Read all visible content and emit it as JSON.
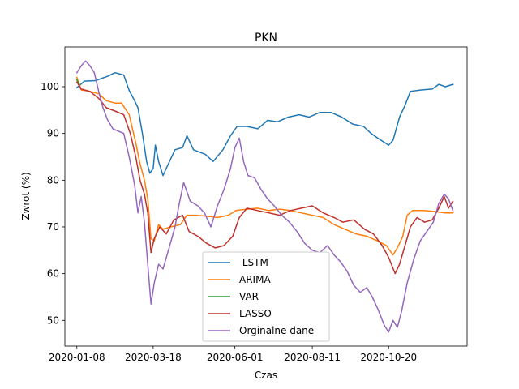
{
  "chart_data": {
    "type": "line",
    "title": "PKN",
    "xlabel": "Czas",
    "ylabel": "Zwrot (%)",
    "x_tick_labels": [
      "2020-01-08",
      "2020-03-18",
      "2020-06-01",
      "2020-08-11",
      "2020-10-20"
    ],
    "x_tick_dates": [
      "2020-01-08",
      "2020-03-18",
      "2020-06-01",
      "2020-08-11",
      "2020-10-20"
    ],
    "y_ticks": [
      50,
      60,
      70,
      80,
      90,
      100
    ],
    "xlim": [
      "2019-12-28",
      "2020-12-31"
    ],
    "ylim": [
      44.5,
      108.5
    ],
    "legend_position": "lower center",
    "series": [
      {
        "name": " LSTM",
        "color": "#1f77b4",
        "points": [
          [
            "2020-01-08",
            99.8
          ],
          [
            "2020-01-15",
            101.2
          ],
          [
            "2020-01-25",
            101.3
          ],
          [
            "2020-02-05",
            102.2
          ],
          [
            "2020-02-12",
            103.0
          ],
          [
            "2020-02-20",
            102.5
          ],
          [
            "2020-02-25",
            99.2
          ],
          [
            "2020-03-01",
            97.0
          ],
          [
            "2020-03-04",
            95.5
          ],
          [
            "2020-03-08",
            90.2
          ],
          [
            "2020-03-12",
            84.0
          ],
          [
            "2020-03-15",
            81.5
          ],
          [
            "2020-03-18",
            82.5
          ],
          [
            "2020-03-20",
            87.5
          ],
          [
            "2020-03-23",
            84.0
          ],
          [
            "2020-03-27",
            81.0
          ],
          [
            "2020-04-01",
            83.5
          ],
          [
            "2020-04-07",
            86.5
          ],
          [
            "2020-04-14",
            87.0
          ],
          [
            "2020-04-18",
            89.5
          ],
          [
            "2020-04-24",
            86.5
          ],
          [
            "2020-05-05",
            85.5
          ],
          [
            "2020-05-12",
            84.0
          ],
          [
            "2020-05-21",
            86.5
          ],
          [
            "2020-05-28",
            89.5
          ],
          [
            "2020-06-03",
            91.5
          ],
          [
            "2020-06-12",
            91.5
          ],
          [
            "2020-06-22",
            91.0
          ],
          [
            "2020-07-01",
            92.8
          ],
          [
            "2020-07-10",
            92.5
          ],
          [
            "2020-07-20",
            93.5
          ],
          [
            "2020-07-30",
            94.0
          ],
          [
            "2020-08-08",
            93.5
          ],
          [
            "2020-08-18",
            94.5
          ],
          [
            "2020-08-28",
            94.5
          ],
          [
            "2020-09-07",
            93.5
          ],
          [
            "2020-09-17",
            92.0
          ],
          [
            "2020-09-27",
            91.5
          ],
          [
            "2020-10-04",
            90.0
          ],
          [
            "2020-10-10",
            89.0
          ],
          [
            "2020-10-20",
            87.5
          ],
          [
            "2020-10-24",
            88.5
          ],
          [
            "2020-10-30",
            93.5
          ],
          [
            "2020-11-04",
            96.0
          ],
          [
            "2020-11-09",
            99.0
          ],
          [
            "2020-11-19",
            99.3
          ],
          [
            "2020-11-29",
            99.5
          ],
          [
            "2020-12-05",
            100.5
          ],
          [
            "2020-12-11",
            100.0
          ],
          [
            "2020-12-18",
            100.5
          ]
        ]
      },
      {
        "name": "ARIMA",
        "color": "#ff7f0e",
        "points": [
          [
            "2020-01-08",
            102.0
          ],
          [
            "2020-01-12",
            99.3
          ],
          [
            "2020-01-20",
            99.0
          ],
          [
            "2020-01-28",
            98.5
          ],
          [
            "2020-02-04",
            97.0
          ],
          [
            "2020-02-12",
            96.5
          ],
          [
            "2020-02-18",
            96.5
          ],
          [
            "2020-02-25",
            94.0
          ],
          [
            "2020-03-02",
            88.0
          ],
          [
            "2020-03-06",
            83.5
          ],
          [
            "2020-03-10",
            80.0
          ],
          [
            "2020-03-13",
            76.0
          ],
          [
            "2020-03-16",
            67.5
          ],
          [
            "2020-03-19",
            67.0
          ],
          [
            "2020-03-23",
            70.5
          ],
          [
            "2020-03-27",
            69.5
          ],
          [
            "2020-04-03",
            70.0
          ],
          [
            "2020-04-12",
            70.5
          ],
          [
            "2020-04-18",
            72.5
          ],
          [
            "2020-04-26",
            72.5
          ],
          [
            "2020-05-06",
            72.3
          ],
          [
            "2020-05-16",
            72.0
          ],
          [
            "2020-05-26",
            72.5
          ],
          [
            "2020-06-02",
            73.5
          ],
          [
            "2020-06-12",
            73.8
          ],
          [
            "2020-06-22",
            74.0
          ],
          [
            "2020-07-02",
            73.5
          ],
          [
            "2020-07-12",
            73.8
          ],
          [
            "2020-07-22",
            73.5
          ],
          [
            "2020-08-01",
            73.0
          ],
          [
            "2020-08-11",
            72.5
          ],
          [
            "2020-08-21",
            72.0
          ],
          [
            "2020-08-31",
            70.5
          ],
          [
            "2020-09-10",
            69.5
          ],
          [
            "2020-09-20",
            68.5
          ],
          [
            "2020-09-30",
            68.0
          ],
          [
            "2020-10-10",
            67.0
          ],
          [
            "2020-10-18",
            66.0
          ],
          [
            "2020-10-24",
            64.0
          ],
          [
            "2020-10-28",
            65.5
          ],
          [
            "2020-11-02",
            68.0
          ],
          [
            "2020-11-06",
            72.5
          ],
          [
            "2020-11-11",
            73.5
          ],
          [
            "2020-11-21",
            73.5
          ],
          [
            "2020-12-01",
            73.3
          ],
          [
            "2020-12-11",
            73.0
          ],
          [
            "2020-12-18",
            73.0
          ]
        ]
      },
      {
        "name": "VAR",
        "color": "#2ca02c",
        "points": [
          [
            "2020-01-08",
            101.5
          ],
          [
            "2020-01-10",
            100.5
          ]
        ]
      },
      {
        "name": "LASSO",
        "color": "#c0302b",
        "points": [
          [
            "2020-01-08",
            101.0
          ],
          [
            "2020-01-12",
            99.5
          ],
          [
            "2020-01-20",
            99.0
          ],
          [
            "2020-01-28",
            97.5
          ],
          [
            "2020-02-04",
            95.5
          ],
          [
            "2020-02-12",
            94.8
          ],
          [
            "2020-02-20",
            94.0
          ],
          [
            "2020-02-26",
            90.0
          ],
          [
            "2020-03-02",
            85.0
          ],
          [
            "2020-03-06",
            80.0
          ],
          [
            "2020-03-10",
            77.0
          ],
          [
            "2020-03-13",
            73.0
          ],
          [
            "2020-03-16",
            64.5
          ],
          [
            "2020-03-19",
            67.5
          ],
          [
            "2020-03-24",
            70.0
          ],
          [
            "2020-03-30",
            68.5
          ],
          [
            "2020-04-06",
            71.5
          ],
          [
            "2020-04-14",
            72.5
          ],
          [
            "2020-04-20",
            69.0
          ],
          [
            "2020-04-28",
            68.0
          ],
          [
            "2020-05-06",
            66.5
          ],
          [
            "2020-05-14",
            65.5
          ],
          [
            "2020-05-22",
            66.0
          ],
          [
            "2020-05-30",
            68.0
          ],
          [
            "2020-06-05",
            72.0
          ],
          [
            "2020-06-12",
            74.0
          ],
          [
            "2020-06-22",
            73.5
          ],
          [
            "2020-07-02",
            73.0
          ],
          [
            "2020-07-12",
            72.5
          ],
          [
            "2020-07-22",
            73.5
          ],
          [
            "2020-08-01",
            74.0
          ],
          [
            "2020-08-11",
            74.5
          ],
          [
            "2020-08-21",
            73.0
          ],
          [
            "2020-08-31",
            72.0
          ],
          [
            "2020-09-08",
            71.0
          ],
          [
            "2020-09-18",
            71.5
          ],
          [
            "2020-09-28",
            69.5
          ],
          [
            "2020-10-06",
            68.5
          ],
          [
            "2020-10-14",
            66.0
          ],
          [
            "2020-10-20",
            63.5
          ],
          [
            "2020-10-26",
            60.0
          ],
          [
            "2020-10-30",
            62.0
          ],
          [
            "2020-11-04",
            66.0
          ],
          [
            "2020-11-09",
            70.0
          ],
          [
            "2020-11-15",
            72.0
          ],
          [
            "2020-11-22",
            71.0
          ],
          [
            "2020-11-29",
            71.5
          ],
          [
            "2020-12-05",
            74.0
          ],
          [
            "2020-12-10",
            76.5
          ],
          [
            "2020-12-14",
            74.0
          ],
          [
            "2020-12-18",
            75.5
          ]
        ]
      },
      {
        "name": "Orginalne dane",
        "color": "#9467bd",
        "points": [
          [
            "2020-01-08",
            103.0
          ],
          [
            "2020-01-12",
            104.5
          ],
          [
            "2020-01-16",
            105.5
          ],
          [
            "2020-01-20",
            104.5
          ],
          [
            "2020-01-24",
            103.0
          ],
          [
            "2020-01-28",
            99.0
          ],
          [
            "2020-02-01",
            95.5
          ],
          [
            "2020-02-05",
            93.0
          ],
          [
            "2020-02-10",
            91.0
          ],
          [
            "2020-02-15",
            90.5
          ],
          [
            "2020-02-20",
            90.0
          ],
          [
            "2020-02-25",
            85.0
          ],
          [
            "2020-03-01",
            79.0
          ],
          [
            "2020-03-04",
            73.0
          ],
          [
            "2020-03-07",
            76.5
          ],
          [
            "2020-03-10",
            71.0
          ],
          [
            "2020-03-13",
            62.0
          ],
          [
            "2020-03-16",
            53.5
          ],
          [
            "2020-03-19",
            58.0
          ],
          [
            "2020-03-23",
            62.0
          ],
          [
            "2020-03-27",
            61.0
          ],
          [
            "2020-04-01",
            65.0
          ],
          [
            "2020-04-07",
            70.0
          ],
          [
            "2020-04-11",
            75.0
          ],
          [
            "2020-04-15",
            79.5
          ],
          [
            "2020-04-21",
            75.5
          ],
          [
            "2020-04-28",
            74.5
          ],
          [
            "2020-05-04",
            73.0
          ],
          [
            "2020-05-10",
            70.0
          ],
          [
            "2020-05-16",
            74.5
          ],
          [
            "2020-05-22",
            78.0
          ],
          [
            "2020-05-28",
            82.5
          ],
          [
            "2020-06-01",
            87.0
          ],
          [
            "2020-06-05",
            89.0
          ],
          [
            "2020-06-09",
            84.0
          ],
          [
            "2020-06-13",
            81.0
          ],
          [
            "2020-06-19",
            80.5
          ],
          [
            "2020-06-25",
            78.0
          ],
          [
            "2020-07-01",
            76.0
          ],
          [
            "2020-07-07",
            74.5
          ],
          [
            "2020-07-14",
            72.5
          ],
          [
            "2020-07-21",
            71.0
          ],
          [
            "2020-07-28",
            69.0
          ],
          [
            "2020-08-04",
            66.5
          ],
          [
            "2020-08-11",
            65.0
          ],
          [
            "2020-08-18",
            64.5
          ],
          [
            "2020-08-25",
            66.0
          ],
          [
            "2020-08-31",
            64.0
          ],
          [
            "2020-09-06",
            62.5
          ],
          [
            "2020-09-12",
            60.5
          ],
          [
            "2020-09-18",
            57.5
          ],
          [
            "2020-09-24",
            56.0
          ],
          [
            "2020-09-30",
            57.0
          ],
          [
            "2020-10-05",
            55.0
          ],
          [
            "2020-10-10",
            52.5
          ],
          [
            "2020-10-16",
            49.0
          ],
          [
            "2020-10-20",
            47.5
          ],
          [
            "2020-10-24",
            50.0
          ],
          [
            "2020-10-28",
            48.5
          ],
          [
            "2020-11-01",
            52.0
          ],
          [
            "2020-11-06",
            58.0
          ],
          [
            "2020-11-12",
            63.0
          ],
          [
            "2020-11-18",
            67.0
          ],
          [
            "2020-11-24",
            69.0
          ],
          [
            "2020-11-30",
            71.0
          ],
          [
            "2020-12-05",
            75.0
          ],
          [
            "2020-12-10",
            77.0
          ],
          [
            "2020-12-14",
            76.0
          ],
          [
            "2020-12-18",
            73.5
          ]
        ]
      }
    ]
  }
}
